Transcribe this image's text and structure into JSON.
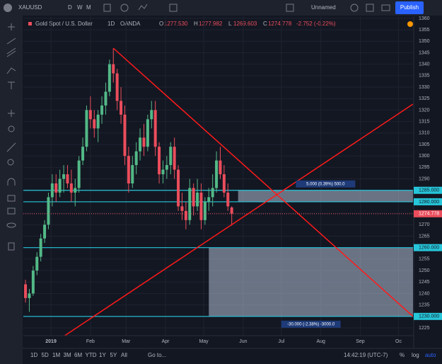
{
  "toolbar": {
    "symbol": "XAUUSD",
    "intervals": [
      "D",
      "W",
      "M"
    ],
    "layout_name": "Unnamed",
    "publish": "Publish"
  },
  "legend": {
    "name": "Gold Spot / U.S. Dollar",
    "interval": "1D",
    "source": "OANDA",
    "fields": [
      {
        "key": "O",
        "value": {
          "value": 1277.53,
          "label": "1277.530"
        }
      },
      {
        "key": "H",
        "value": {
          "value": 1277.982,
          "label": "1277.982"
        }
      },
      {
        "key": "L",
        "value": {
          "value": 1269.603,
          "label": "1269.603"
        }
      },
      {
        "key": "C",
        "value": {
          "value": 1274.778,
          "label": "1274.778"
        }
      }
    ],
    "change": "-2.752 (-0.22%)"
  },
  "chart_data": {
    "type": "candlestick",
    "xlim": [
      -21.7,
      284.4
    ],
    "ylim": [
      1221.6,
      1360.9
    ],
    "xticks": [
      {
        "value": 0,
        "label": "2019"
      },
      {
        "value": 31,
        "label": "Feb"
      },
      {
        "value": 59,
        "label": "Mar"
      },
      {
        "value": 90,
        "label": "Apr"
      },
      {
        "value": 120,
        "label": "May"
      },
      {
        "value": 151,
        "label": "Jun"
      },
      {
        "value": 181,
        "label": "Jul"
      },
      {
        "value": 212,
        "label": "Aug"
      },
      {
        "value": 243,
        "label": "Sep"
      },
      {
        "value": 273,
        "label": "Oc"
      }
    ],
    "yticks": [
      1360,
      1355,
      1350,
      1345,
      1340,
      1335,
      1330,
      1325,
      1320,
      1315,
      1310,
      1305,
      1300,
      1295,
      1290,
      1285,
      1280,
      1275,
      1270,
      1265,
      1260,
      1255,
      1250,
      1245,
      1240,
      1235,
      1230,
      1225
    ],
    "candles": {
      "x": [
        -20,
        -17,
        -14,
        -11,
        -8,
        -5,
        -2,
        1,
        4,
        7,
        10,
        13,
        16,
        19,
        22,
        25,
        28,
        31,
        34,
        37,
        40,
        43,
        46,
        49,
        52,
        55,
        58,
        61,
        64,
        67,
        70,
        73,
        76,
        79,
        82,
        85,
        88,
        91,
        94,
        97,
        100,
        103,
        106,
        109,
        112,
        115,
        118,
        121,
        124,
        127,
        130,
        133,
        136,
        139
      ],
      "ohlc": [
        [
          1244,
          1246,
          1236,
          1238
        ],
        [
          1238,
          1242,
          1232,
          1240
        ],
        [
          1240,
          1252,
          1239,
          1250
        ],
        [
          1250,
          1258,
          1248,
          1256
        ],
        [
          1256,
          1266,
          1254,
          1264
        ],
        [
          1264,
          1272,
          1262,
          1270
        ],
        [
          1270,
          1284,
          1268,
          1282
        ],
        [
          1282,
          1292,
          1278,
          1288
        ],
        [
          1288,
          1292,
          1280,
          1284
        ],
        [
          1284,
          1294,
          1282,
          1290
        ],
        [
          1290,
          1296,
          1284,
          1292
        ],
        [
          1292,
          1296,
          1286,
          1288
        ],
        [
          1288,
          1294,
          1280,
          1284
        ],
        [
          1284,
          1290,
          1278,
          1286
        ],
        [
          1286,
          1300,
          1284,
          1298
        ],
        [
          1298,
          1308,
          1296,
          1304
        ],
        [
          1304,
          1322,
          1302,
          1320
        ],
        [
          1320,
          1326,
          1312,
          1316
        ],
        [
          1316,
          1320,
          1308,
          1312
        ],
        [
          1312,
          1320,
          1306,
          1318
        ],
        [
          1318,
          1326,
          1314,
          1322
        ],
        [
          1322,
          1332,
          1318,
          1328
        ],
        [
          1328,
          1342,
          1326,
          1340
        ],
        [
          1340,
          1347,
          1332,
          1336
        ],
        [
          1336,
          1338,
          1320,
          1324
        ],
        [
          1324,
          1330,
          1314,
          1318
        ],
        [
          1318,
          1322,
          1296,
          1300
        ],
        [
          1300,
          1304,
          1284,
          1288
        ],
        [
          1288,
          1300,
          1286,
          1296
        ],
        [
          1296,
          1306,
          1292,
          1302
        ],
        [
          1302,
          1312,
          1298,
          1308
        ],
        [
          1308,
          1314,
          1300,
          1304
        ],
        [
          1304,
          1318,
          1302,
          1316
        ],
        [
          1316,
          1324,
          1312,
          1320
        ],
        [
          1320,
          1324,
          1300,
          1304
        ],
        [
          1304,
          1306,
          1288,
          1292
        ],
        [
          1292,
          1298,
          1288,
          1294
        ],
        [
          1294,
          1300,
          1290,
          1296
        ],
        [
          1296,
          1306,
          1292,
          1304
        ],
        [
          1304,
          1308,
          1290,
          1294
        ],
        [
          1294,
          1296,
          1276,
          1278
        ],
        [
          1278,
          1284,
          1272,
          1276
        ],
        [
          1276,
          1280,
          1268,
          1272
        ],
        [
          1272,
          1290,
          1270,
          1286
        ],
        [
          1286,
          1288,
          1274,
          1278
        ],
        [
          1278,
          1290,
          1276,
          1284
        ],
        [
          1284,
          1288,
          1268,
          1272
        ],
        [
          1272,
          1282,
          1270,
          1280
        ],
        [
          1280,
          1286,
          1276,
          1282
        ],
        [
          1282,
          1292,
          1278,
          1286
        ],
        [
          1286,
          1302,
          1284,
          1298
        ],
        [
          1298,
          1304,
          1290,
          1292
        ],
        [
          1292,
          1296,
          1282,
          1284
        ],
        [
          1284,
          1288,
          1276,
          1278
        ]
      ]
    },
    "last_x": 142,
    "up_color": "#53b987",
    "down_color": "#eb4d5c",
    "levels": [
      {
        "value": 1285,
        "label": "1285.000"
      },
      {
        "value": 1280,
        "label": "1280.000"
      },
      {
        "value": 1260,
        "label": "1260.000"
      },
      {
        "value": 1230,
        "label": "1230.000"
      }
    ],
    "level_color": "#26c6da",
    "trendlines": [
      {
        "x": [
          49,
          284.4
        ],
        "y": [
          1347,
          1230
        ]
      },
      {
        "x": [
          10,
          284.4
        ],
        "y": [
          1221.3,
          1322.6
        ]
      }
    ],
    "trend_color": "#ff1a1a",
    "ranges": [
      {
        "x": [
          147,
          284.4
        ],
        "y": [
          1285,
          1280
        ],
        "label": "5.000 (0.39%) 500.0"
      },
      {
        "x": [
          124,
          284.4
        ],
        "y": [
          1260,
          1230
        ],
        "label": "-30.000 (-2.38%) -3000.0"
      }
    ]
  },
  "range_buttons": [
    "1D",
    "5D",
    "1M",
    "3M",
    "6M",
    "YTD",
    "1Y",
    "5Y",
    "All"
  ],
  "goto": "Go to...",
  "clock": "14:42:19 (UTC-7)",
  "scale_options": [
    "%",
    "log",
    "auto"
  ]
}
